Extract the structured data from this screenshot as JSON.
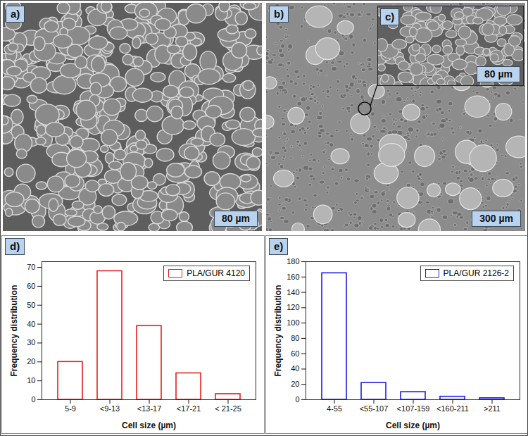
{
  "images": [
    {
      "label": "a)",
      "scale_bar": "80 µm"
    },
    {
      "label": "b)",
      "scale_bar": "300 µm",
      "inset": {
        "label": "c)",
        "scale_bar": "80 µm"
      }
    }
  ],
  "chart_data": [
    {
      "type": "bar",
      "panel": "d)",
      "categories": [
        "5-9",
        "<9-13",
        "<13-17",
        "<17-21",
        "< 21-25"
      ],
      "series": [
        {
          "name": "PLA/GUR 4120",
          "color": "#e3211c",
          "values": [
            20,
            68,
            39,
            14,
            3
          ]
        }
      ],
      "x_label": "Cell size (µm)",
      "y_label": "Frequency distribution",
      "ylim": [
        0,
        73
      ],
      "yticks": [
        0,
        10,
        20,
        30,
        40,
        50,
        60,
        70
      ],
      "legend": "top-right",
      "grid": false
    },
    {
      "type": "bar",
      "panel": "e)",
      "categories": [
        "4-55",
        "<55-107",
        "<107-159",
        "<160-211",
        ">211"
      ],
      "series": [
        {
          "name": "PLA/GUR 2126-2",
          "color": "#1f1fe0",
          "values": [
            165,
            22,
            10,
            4,
            2
          ]
        }
      ],
      "x_label": "Cell size (µm)",
      "y_label": "Frequency distribution",
      "ylim": [
        0,
        180
      ],
      "yticks": [
        0,
        20,
        40,
        60,
        80,
        100,
        120,
        140,
        160,
        180
      ],
      "legend": "top-right",
      "grid": false
    }
  ]
}
